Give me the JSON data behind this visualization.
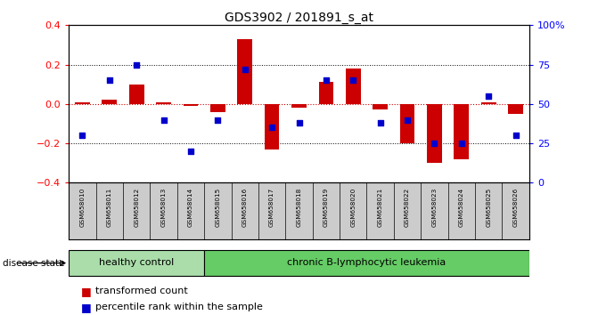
{
  "title": "GDS3902 / 201891_s_at",
  "samples": [
    "GSM658010",
    "GSM658011",
    "GSM658012",
    "GSM658013",
    "GSM658014",
    "GSM658015",
    "GSM658016",
    "GSM658017",
    "GSM658018",
    "GSM658019",
    "GSM658020",
    "GSM658021",
    "GSM658022",
    "GSM658023",
    "GSM658024",
    "GSM658025",
    "GSM658026"
  ],
  "red_values": [
    0.01,
    0.02,
    0.1,
    0.01,
    -0.01,
    -0.04,
    0.33,
    -0.23,
    -0.02,
    0.11,
    0.18,
    -0.03,
    -0.2,
    -0.3,
    -0.28,
    0.01,
    -0.05
  ],
  "blue_values_pct": [
    30,
    65,
    75,
    40,
    20,
    40,
    72,
    35,
    38,
    65,
    65,
    38,
    40,
    25,
    25,
    55,
    30
  ],
  "group_labels": [
    "healthy control",
    "chronic B-lymphocytic leukemia"
  ],
  "group_split": 5,
  "group_colors": [
    "#aaddaa",
    "#66cc66"
  ],
  "disease_state_label": "disease state",
  "legend_items": [
    "transformed count",
    "percentile rank within the sample"
  ],
  "legend_colors": [
    "#cc0000",
    "#0000cc"
  ],
  "ylim": [
    -0.4,
    0.4
  ],
  "y2lim": [
    0,
    100
  ],
  "yticks_left": [
    -0.4,
    -0.2,
    0.0,
    0.2,
    0.4
  ],
  "yticks_right": [
    0,
    25,
    50,
    75,
    100
  ],
  "hlines_dotted": [
    0.2,
    -0.2
  ],
  "bar_color": "#cc0000",
  "dot_color": "#0000cc",
  "bar_width": 0.55,
  "dot_size": 25,
  "sample_label_bg": "#cccccc",
  "zero_line_color": "#cc0000",
  "dotted_line_color": "#000000"
}
